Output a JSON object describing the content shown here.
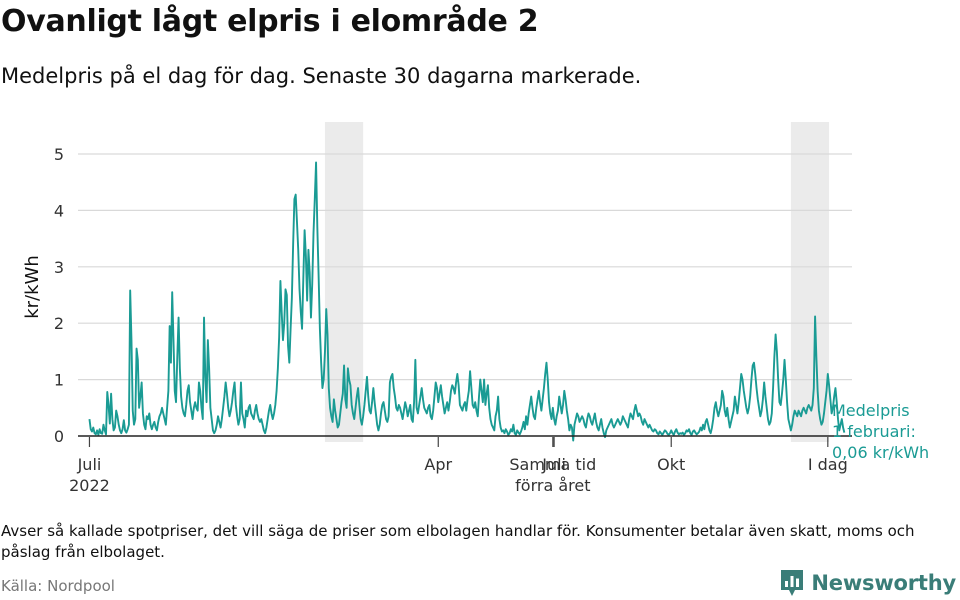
{
  "header": {
    "title": "Ovanligt lågt elpris i elområde 2",
    "subtitle": "Medelpris på el dag för dag.  Senaste 30 dagarna markerade."
  },
  "footer": {
    "note": "Avser så kallade spotpriser, det vill säga de priser som elbolagen handlar för. Konsumenter betalar även skatt, moms och påslag från elbolaget.",
    "source": "Källa: Nordpool",
    "brand": "Newsworthy"
  },
  "colors": {
    "line": "#1a9b94",
    "shade": "#ebebeb",
    "grid": "#d9d9d9",
    "baseline": "#222222",
    "brand": "#3a7d78"
  },
  "chart_data": {
    "type": "line",
    "title": "Ovanligt lågt elpris i elområde 2",
    "ylabel": "kr/kWh",
    "xlabel": "",
    "ylim": [
      0,
      5.5
    ],
    "y_ticks": [
      0,
      1,
      2,
      3,
      4,
      5
    ],
    "x_ticks": [
      {
        "day": 1,
        "lines": [
          "Juli",
          "2022"
        ]
      },
      {
        "day": 365,
        "lines": [
          "Samma tid",
          "förra året"
        ]
      },
      {
        "day": 275,
        "lines": [
          "Apr"
        ]
      },
      {
        "day": 366,
        "lines": [
          "Juli"
        ]
      },
      {
        "day": 458,
        "lines": [
          "Okt"
        ]
      },
      {
        "day": 581,
        "lines": [
          "I dag"
        ]
      }
    ],
    "x_domain": [
      -8,
      600
    ],
    "highlight_windows": [
      {
        "label": "Samma tid förra året",
        "start": 186,
        "end": 216
      },
      {
        "label": "Senaste 30 dagarna",
        "start": 552,
        "end": 582
      }
    ],
    "annotation": {
      "lines": [
        "Medelpris",
        "1 februari:",
        "0,06 kr/kWh"
      ],
      "value": 0.06
    },
    "series": [
      {
        "name": "Medelpris",
        "start_day": 1,
        "values": [
          0.3,
          0.12,
          0.08,
          0.15,
          0.05,
          0.03,
          0.1,
          0.02,
          0.12,
          0.05,
          0.04,
          0.2,
          0.1,
          0.03,
          0.78,
          0.55,
          0.22,
          0.75,
          0.3,
          0.1,
          0.15,
          0.45,
          0.35,
          0.2,
          0.1,
          0.05,
          0.12,
          0.28,
          0.1,
          0.06,
          0.12,
          0.2,
          2.58,
          1.7,
          0.45,
          0.2,
          0.3,
          1.55,
          1.35,
          0.5,
          0.7,
          0.95,
          0.4,
          0.2,
          0.12,
          0.35,
          0.3,
          0.4,
          0.2,
          0.12,
          0.2,
          0.25,
          0.15,
          0.1,
          0.25,
          0.35,
          0.4,
          0.5,
          0.4,
          0.3,
          0.2,
          0.5,
          0.8,
          1.95,
          1.3,
          2.55,
          1.7,
          0.8,
          0.6,
          1.4,
          2.1,
          1.2,
          0.7,
          0.5,
          0.4,
          0.35,
          0.55,
          0.8,
          0.9,
          0.6,
          0.45,
          0.3,
          0.5,
          0.6,
          0.5,
          0.45,
          0.95,
          0.8,
          0.5,
          0.3,
          2.1,
          1.05,
          0.6,
          1.7,
          1.2,
          0.5,
          0.3,
          0.1,
          0.05,
          0.1,
          0.2,
          0.35,
          0.25,
          0.15,
          0.3,
          0.5,
          0.7,
          0.95,
          0.75,
          0.5,
          0.35,
          0.45,
          0.6,
          0.8,
          0.95,
          0.55,
          0.35,
          0.2,
          0.3,
          0.95,
          0.4,
          0.3,
          0.15,
          0.45,
          0.35,
          0.5,
          0.55,
          0.4,
          0.35,
          0.3,
          0.45,
          0.55,
          0.4,
          0.3,
          0.25,
          0.3,
          0.2,
          0.1,
          0.05,
          0.15,
          0.3,
          0.45,
          0.55,
          0.4,
          0.3,
          0.4,
          0.55,
          0.8,
          1.2,
          1.75,
          2.75,
          2.2,
          1.7,
          2.0,
          2.6,
          2.5,
          1.6,
          1.3,
          1.9,
          2.45,
          3.4,
          4.2,
          4.28,
          3.8,
          3.3,
          2.6,
          2.2,
          1.9,
          2.8,
          3.65,
          3.2,
          2.4,
          3.3,
          2.9,
          2.1,
          2.7,
          3.6,
          4.2,
          4.85,
          3.7,
          2.85,
          1.9,
          1.3,
          0.85,
          1.0,
          1.5,
          2.25,
          1.8,
          0.85,
          0.5,
          0.35,
          0.25,
          0.65,
          0.45,
          0.3,
          0.15,
          0.2,
          0.4,
          0.6,
          0.75,
          1.25,
          0.65,
          0.5,
          1.2,
          1.0,
          0.9,
          0.55,
          0.4,
          0.3,
          0.5,
          0.7,
          0.85,
          0.55,
          0.3,
          0.2,
          0.35,
          0.55,
          0.8,
          1.05,
          0.7,
          0.45,
          0.4,
          0.6,
          0.85,
          0.6,
          0.4,
          0.2,
          0.1,
          0.2,
          0.4,
          0.55,
          0.6,
          0.45,
          0.3,
          0.25,
          0.35,
          0.95,
          1.05,
          1.1,
          0.85,
          0.7,
          0.5,
          0.45,
          0.55,
          0.5,
          0.4,
          0.3,
          0.45,
          0.6,
          0.5,
          0.35,
          0.45,
          0.55,
          0.3,
          0.25,
          0.6,
          1.35,
          0.5,
          0.4,
          0.55,
          0.7,
          0.85,
          0.65,
          0.5,
          0.45,
          0.4,
          0.5,
          0.55,
          0.35,
          0.3,
          0.45,
          0.7,
          0.95,
          0.85,
          0.6,
          0.75,
          0.9,
          0.7,
          0.55,
          0.4,
          0.5,
          0.6,
          0.45,
          0.6,
          0.8,
          0.9,
          0.85,
          0.75,
          0.95,
          1.1,
          0.9,
          0.55,
          0.5,
          0.45,
          0.55,
          0.6,
          0.45,
          0.65,
          0.8,
          1.15,
          0.85,
          0.55,
          0.5,
          0.6,
          0.45,
          0.35,
          0.7,
          1.0,
          0.8,
          0.6,
          1.0,
          0.55,
          0.75,
          0.9,
          0.5,
          0.3,
          0.2,
          0.15,
          0.1,
          0.35,
          0.45,
          0.7,
          0.3,
          0.15,
          0.08,
          0.1,
          0.05,
          0.12,
          0.08,
          0.02,
          0.05,
          0.12,
          0.08,
          0.2,
          0.05,
          0.02,
          0.1,
          0.06,
          0.03,
          0.08,
          0.15,
          0.25,
          0.12,
          0.35,
          0.2,
          0.4,
          0.55,
          0.7,
          0.5,
          0.35,
          0.3,
          0.5,
          0.65,
          0.8,
          0.6,
          0.45,
          0.65,
          0.85,
          1.1,
          1.3,
          1.0,
          0.6,
          0.4,
          0.3,
          0.5,
          0.3,
          0.2,
          0.35,
          0.45,
          0.7,
          0.55,
          0.4,
          0.55,
          0.8,
          0.65,
          0.45,
          0.3,
          0.1,
          0.2,
          0.15,
          -0.08,
          0.2,
          0.3,
          0.4,
          0.35,
          0.25,
          0.3,
          0.35,
          0.3,
          0.2,
          0.15,
          0.3,
          0.4,
          0.35,
          0.25,
          0.2,
          0.3,
          0.4,
          0.25,
          0.15,
          0.1,
          0.2,
          0.3,
          0.15,
          0.05,
          -0.02,
          0.1,
          0.15,
          0.2,
          0.25,
          0.3,
          0.2,
          0.15,
          0.2,
          0.25,
          0.3,
          0.25,
          0.2,
          0.25,
          0.35,
          0.3,
          0.25,
          0.2,
          0.15,
          0.3,
          0.4,
          0.35,
          0.3,
          0.45,
          0.55,
          0.45,
          0.35,
          0.4,
          0.35,
          0.25,
          0.2,
          0.3,
          0.25,
          0.2,
          0.15,
          0.2,
          0.15,
          0.1,
          0.08,
          0.12,
          0.1,
          0.05,
          0.03,
          0.08,
          0.05,
          0.02,
          0.06,
          0.1,
          0.08,
          0.04,
          0.02,
          0.05,
          0.1,
          0.05,
          0.02,
          0.08,
          0.12,
          0.06,
          0.03,
          0.05,
          0.04,
          0.06,
          0.02,
          0.05,
          0.1,
          0.08,
          0.12,
          0.05,
          0.02,
          0.08,
          0.1,
          0.06,
          0.03,
          0.05,
          0.08,
          0.15,
          0.1,
          0.2,
          0.12,
          0.25,
          0.3,
          0.2,
          0.1,
          0.05,
          0.15,
          0.3,
          0.5,
          0.6,
          0.45,
          0.35,
          0.45,
          0.55,
          0.8,
          0.7,
          0.45,
          0.35,
          0.5,
          0.3,
          0.15,
          0.25,
          0.35,
          0.45,
          0.7,
          0.55,
          0.4,
          0.6,
          0.85,
          1.1,
          1.0,
          0.8,
          0.65,
          0.5,
          0.4,
          0.5,
          0.7,
          1.0,
          1.25,
          1.3,
          1.1,
          0.85,
          0.65,
          0.5,
          0.35,
          0.45,
          0.65,
          0.95,
          0.7,
          0.5,
          0.3,
          0.2,
          0.25,
          0.4,
          0.85,
          1.4,
          1.8,
          1.5,
          1.0,
          0.6,
          0.55,
          0.75,
          1.0,
          1.35,
          1.0,
          0.6,
          0.3,
          0.2,
          0.1,
          0.2,
          0.35,
          0.45,
          0.4,
          0.35,
          0.45,
          0.4,
          0.35,
          0.45,
          0.5,
          0.45,
          0.4,
          0.5,
          0.55,
          0.5,
          0.45,
          0.55,
          0.85,
          2.12,
          1.4,
          0.8,
          0.45,
          0.3,
          0.2,
          0.25,
          0.4,
          0.6,
          0.8,
          1.1,
          0.9,
          0.65,
          0.4,
          0.5,
          0.7,
          0.85,
          0.6,
          0.3,
          0.1,
          0.2,
          0.3,
          0.15,
          0.06
        ]
      }
    ]
  }
}
